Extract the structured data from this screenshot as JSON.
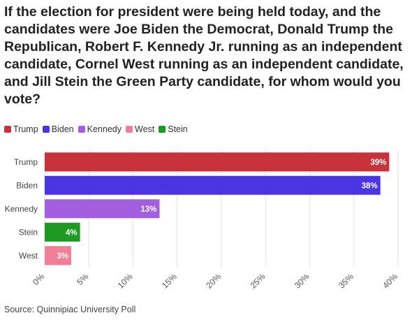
{
  "title": "If the election for president were being held today, and the candidates were Joe Biden the Democrat, Donald Trump the Republican, Robert F. Kennedy Jr. running as an independent candidate, Cornel West running as an independent candidate, and Jill Stein the Green Party candidate, for whom would you vote?",
  "source": "Source: Quinnipiac University Poll",
  "legend": [
    {
      "label": "Trump",
      "color": "#c8323a"
    },
    {
      "label": "Biden",
      "color": "#4a35e0"
    },
    {
      "label": "Kennedy",
      "color": "#a35ee0"
    },
    {
      "label": "West",
      "color": "#f27e98"
    },
    {
      "label": "Stein",
      "color": "#1e9a23"
    }
  ],
  "chart_data": {
    "type": "bar",
    "orientation": "horizontal",
    "categories": [
      "Trump",
      "Biden",
      "Kennedy",
      "Stein",
      "West"
    ],
    "values": [
      39,
      38,
      13,
      4,
      3
    ],
    "data_labels": [
      "39%",
      "38%",
      "13%",
      "4%",
      "3%"
    ],
    "colors": [
      "#c8323a",
      "#4a35e0",
      "#a35ee0",
      "#1e9a23",
      "#f27e98"
    ],
    "xlim": [
      0,
      40
    ],
    "xticks": [
      0,
      5,
      10,
      15,
      20,
      25,
      30,
      35,
      40
    ],
    "xtick_labels": [
      "0%",
      "5%",
      "10%",
      "15%",
      "20%",
      "25%",
      "30%",
      "35%",
      "40%"
    ],
    "grid": true
  }
}
